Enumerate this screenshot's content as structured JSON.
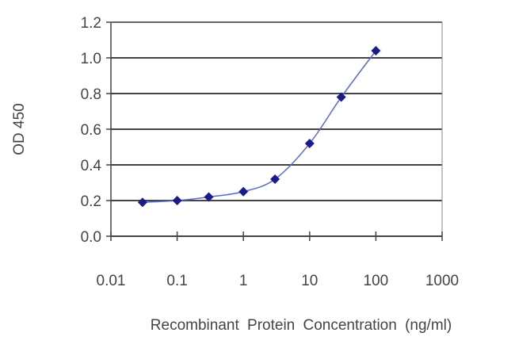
{
  "chart_data": {
    "type": "line",
    "title": "",
    "xlabel": "Recombinant Protein Concentration (ng/ml)",
    "ylabel": "OD 450",
    "x_scale": "log",
    "xlim": [
      0.01,
      1000
    ],
    "ylim": [
      0,
      1.2
    ],
    "x_ticks": [
      "0.01",
      "0.1",
      "1",
      "10",
      "100",
      "1000"
    ],
    "y_ticks": [
      "0.0",
      "0.2",
      "0.4",
      "0.6",
      "0.8",
      "1.0",
      "1.2"
    ],
    "grid": "horizontal",
    "legend": "none",
    "series": [
      {
        "color": "#1a1a8c",
        "marker": "diamond",
        "x": [
          0.03,
          0.1,
          0.3,
          1,
          3,
          10,
          30,
          100
        ],
        "y": [
          0.19,
          0.2,
          0.22,
          0.25,
          0.32,
          0.52,
          0.78,
          1.04
        ]
      }
    ]
  }
}
